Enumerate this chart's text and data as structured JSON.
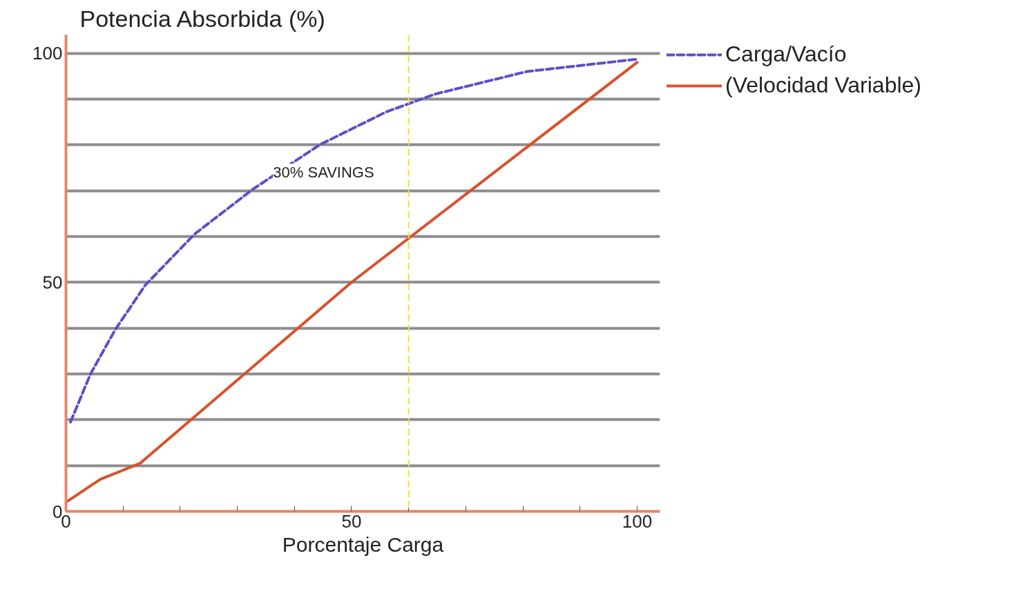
{
  "chart_data": {
    "type": "line",
    "xlabel": "Porcentaje Carga",
    "ylabel": "Potencia Absorbida (%)",
    "xlim": [
      0,
      104
    ],
    "ylim": [
      0,
      104
    ],
    "xticks": [
      0,
      {
        "value": 10,
        "label": null
      },
      {
        "value": 20,
        "label": null
      },
      {
        "value": 30,
        "label": null
      },
      {
        "value": 40,
        "label": null
      },
      50,
      {
        "value": 60,
        "label": null
      },
      {
        "value": 70,
        "label": null
      },
      {
        "value": 80,
        "label": null
      },
      {
        "value": 90,
        "label": null
      },
      100
    ],
    "yticks": [
      0,
      {
        "value": 10,
        "label": null
      },
      {
        "value": 20,
        "label": null
      },
      {
        "value": 30,
        "label": null
      },
      {
        "value": 40,
        "label": null
      },
      50,
      {
        "value": 60,
        "label": null
      },
      {
        "value": 70,
        "label": null
      },
      {
        "value": 80,
        "label": null
      },
      {
        "value": 90,
        "label": null
      },
      100
    ],
    "grid": "y",
    "legend": "top right",
    "series": [
      {
        "name": "Carga/Vacío",
        "color": "#5a50c8",
        "line_style": "dashed",
        "x": [
          0.8,
          4.3,
          8.6,
          13.9,
          22.5,
          32.6,
          44.4,
          56.1,
          64.7,
          80.7,
          100
        ],
        "values": [
          19.5,
          30,
          39.6,
          49.4,
          60.5,
          70.2,
          80,
          87.2,
          91.1,
          96,
          98.7
        ]
      },
      {
        "name": "(Velocidad Variable)",
        "color": "#d9512c",
        "line_style": "solid",
        "x": [
          0,
          6,
          13,
          50,
          100
        ],
        "values": [
          2,
          7,
          10.5,
          50,
          98
        ]
      }
    ],
    "ref_lines": [
      {
        "axis": "x",
        "value": 60,
        "color": "#f2e03a",
        "line_style": "dashed"
      }
    ],
    "annotations": [
      {
        "text": "30% SAVINGS",
        "x": 60,
        "y": 74
      }
    ]
  }
}
